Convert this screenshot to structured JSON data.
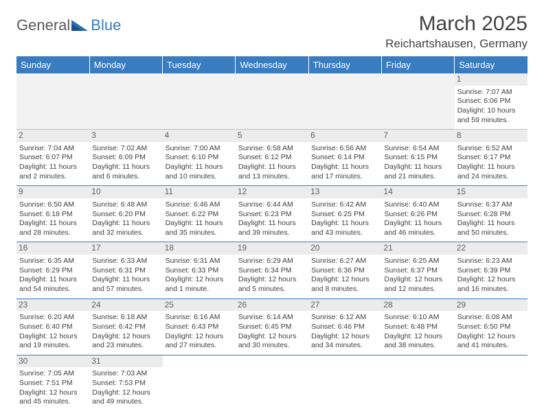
{
  "logo": {
    "general": "General",
    "blue": "Blue"
  },
  "title": "March 2025",
  "location": "Reichartshausen, Germany",
  "colors": {
    "header_bg": "#3a7cc0",
    "header_text": "#ffffff",
    "border": "#3a7cc0",
    "daynum_bg": "#ececec",
    "text": "#404040"
  },
  "weekdays": [
    "Sunday",
    "Monday",
    "Tuesday",
    "Wednesday",
    "Thursday",
    "Friday",
    "Saturday"
  ],
  "weeks": [
    [
      null,
      null,
      null,
      null,
      null,
      null,
      {
        "n": "1",
        "sr": "7:07 AM",
        "ss": "6:06 PM",
        "dl": "10 hours and 59 minutes."
      }
    ],
    [
      {
        "n": "2",
        "sr": "7:04 AM",
        "ss": "6:07 PM",
        "dl": "11 hours and 2 minutes."
      },
      {
        "n": "3",
        "sr": "7:02 AM",
        "ss": "6:09 PM",
        "dl": "11 hours and 6 minutes."
      },
      {
        "n": "4",
        "sr": "7:00 AM",
        "ss": "6:10 PM",
        "dl": "11 hours and 10 minutes."
      },
      {
        "n": "5",
        "sr": "6:58 AM",
        "ss": "6:12 PM",
        "dl": "11 hours and 13 minutes."
      },
      {
        "n": "6",
        "sr": "6:56 AM",
        "ss": "6:14 PM",
        "dl": "11 hours and 17 minutes."
      },
      {
        "n": "7",
        "sr": "6:54 AM",
        "ss": "6:15 PM",
        "dl": "11 hours and 21 minutes."
      },
      {
        "n": "8",
        "sr": "6:52 AM",
        "ss": "6:17 PM",
        "dl": "11 hours and 24 minutes."
      }
    ],
    [
      {
        "n": "9",
        "sr": "6:50 AM",
        "ss": "6:18 PM",
        "dl": "11 hours and 28 minutes."
      },
      {
        "n": "10",
        "sr": "6:48 AM",
        "ss": "6:20 PM",
        "dl": "11 hours and 32 minutes."
      },
      {
        "n": "11",
        "sr": "6:46 AM",
        "ss": "6:22 PM",
        "dl": "11 hours and 35 minutes."
      },
      {
        "n": "12",
        "sr": "6:44 AM",
        "ss": "6:23 PM",
        "dl": "11 hours and 39 minutes."
      },
      {
        "n": "13",
        "sr": "6:42 AM",
        "ss": "6:25 PM",
        "dl": "11 hours and 43 minutes."
      },
      {
        "n": "14",
        "sr": "6:40 AM",
        "ss": "6:26 PM",
        "dl": "11 hours and 46 minutes."
      },
      {
        "n": "15",
        "sr": "6:37 AM",
        "ss": "6:28 PM",
        "dl": "11 hours and 50 minutes."
      }
    ],
    [
      {
        "n": "16",
        "sr": "6:35 AM",
        "ss": "6:29 PM",
        "dl": "11 hours and 54 minutes."
      },
      {
        "n": "17",
        "sr": "6:33 AM",
        "ss": "6:31 PM",
        "dl": "11 hours and 57 minutes."
      },
      {
        "n": "18",
        "sr": "6:31 AM",
        "ss": "6:33 PM",
        "dl": "12 hours and 1 minute."
      },
      {
        "n": "19",
        "sr": "6:29 AM",
        "ss": "6:34 PM",
        "dl": "12 hours and 5 minutes."
      },
      {
        "n": "20",
        "sr": "6:27 AM",
        "ss": "6:36 PM",
        "dl": "12 hours and 8 minutes."
      },
      {
        "n": "21",
        "sr": "6:25 AM",
        "ss": "6:37 PM",
        "dl": "12 hours and 12 minutes."
      },
      {
        "n": "22",
        "sr": "6:23 AM",
        "ss": "6:39 PM",
        "dl": "12 hours and 16 minutes."
      }
    ],
    [
      {
        "n": "23",
        "sr": "6:20 AM",
        "ss": "6:40 PM",
        "dl": "12 hours and 19 minutes."
      },
      {
        "n": "24",
        "sr": "6:18 AM",
        "ss": "6:42 PM",
        "dl": "12 hours and 23 minutes."
      },
      {
        "n": "25",
        "sr": "6:16 AM",
        "ss": "6:43 PM",
        "dl": "12 hours and 27 minutes."
      },
      {
        "n": "26",
        "sr": "6:14 AM",
        "ss": "6:45 PM",
        "dl": "12 hours and 30 minutes."
      },
      {
        "n": "27",
        "sr": "6:12 AM",
        "ss": "6:46 PM",
        "dl": "12 hours and 34 minutes."
      },
      {
        "n": "28",
        "sr": "6:10 AM",
        "ss": "6:48 PM",
        "dl": "12 hours and 38 minutes."
      },
      {
        "n": "29",
        "sr": "6:08 AM",
        "ss": "6:50 PM",
        "dl": "12 hours and 41 minutes."
      }
    ],
    [
      {
        "n": "30",
        "sr": "7:05 AM",
        "ss": "7:51 PM",
        "dl": "12 hours and 45 minutes."
      },
      {
        "n": "31",
        "sr": "7:03 AM",
        "ss": "7:53 PM",
        "dl": "12 hours and 49 minutes."
      },
      null,
      null,
      null,
      null,
      null
    ]
  ],
  "labels": {
    "sunrise": "Sunrise: ",
    "sunset": "Sunset: ",
    "daylight": "Daylight: "
  }
}
